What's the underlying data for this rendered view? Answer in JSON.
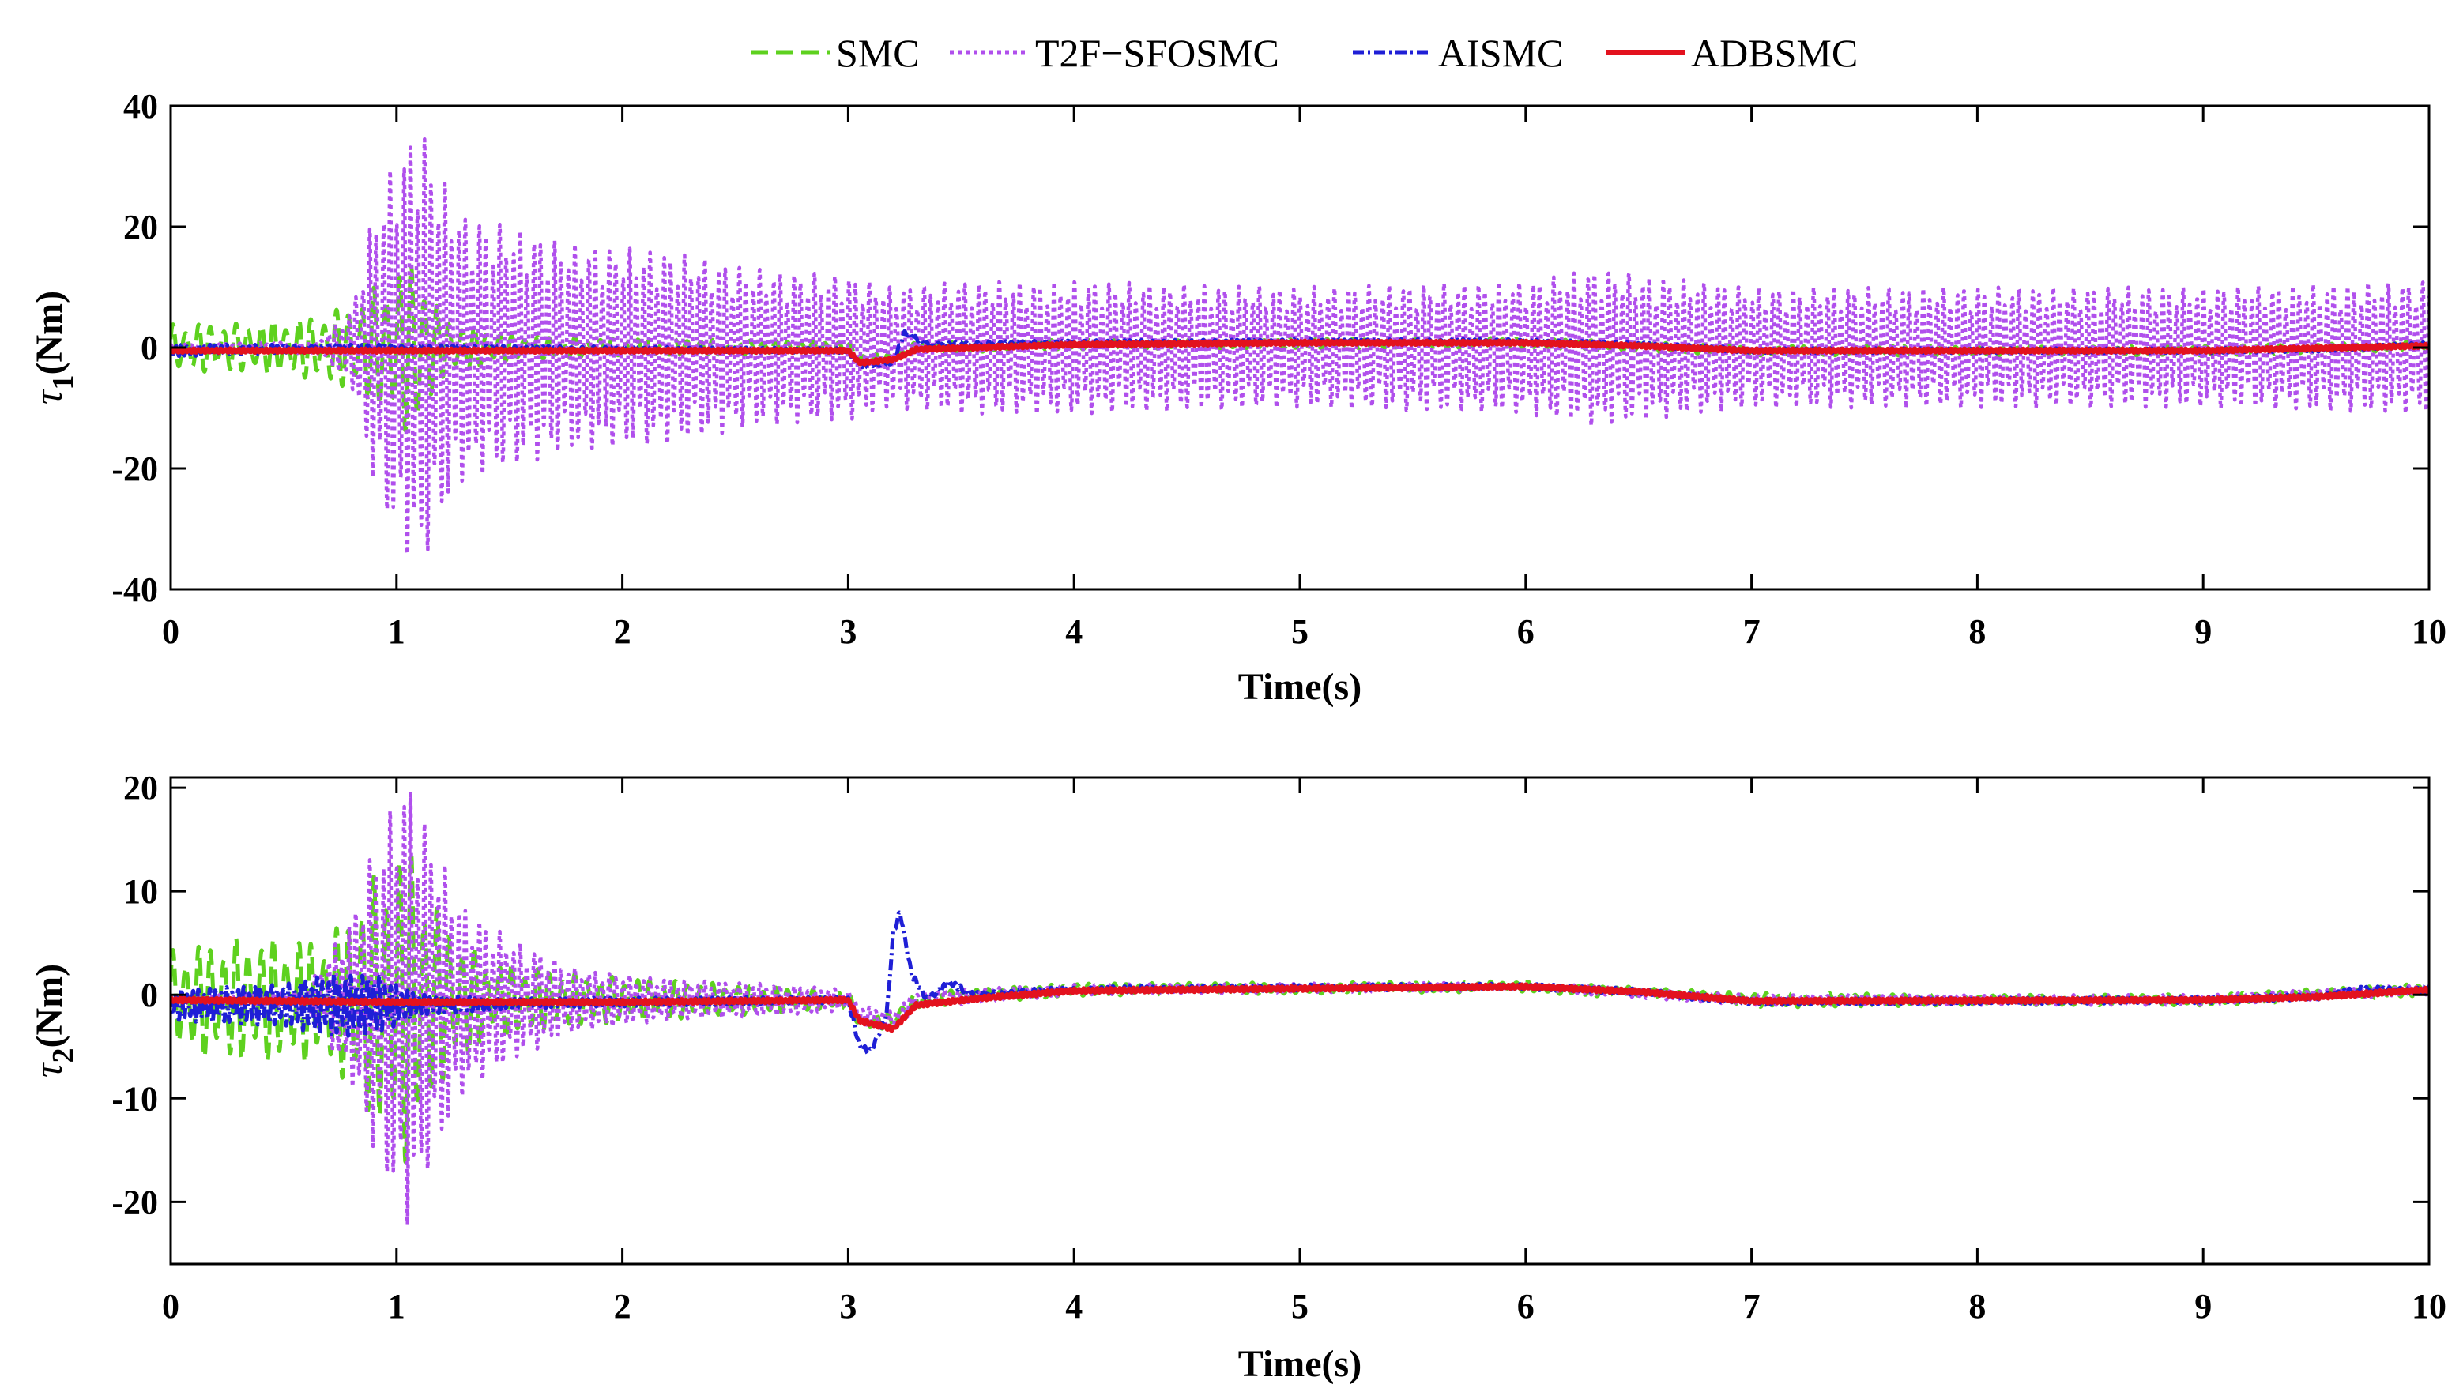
{
  "chart_data": [
    {
      "type": "line",
      "panel": "top",
      "ylabel_symbol": "τ",
      "ylabel_sub": "1",
      "ylabel_unit": "(Nm)",
      "xlabel": "Time(s)",
      "xlim": [
        0,
        10
      ],
      "ylim": [
        -40,
        40
      ],
      "xticks": [
        0,
        1,
        2,
        3,
        4,
        5,
        6,
        7,
        8,
        9,
        10
      ],
      "yticks": [
        -40,
        -20,
        0,
        20,
        40
      ],
      "series": [
        {
          "name": "SMC",
          "color": "#5ed11f",
          "envelope": [
            [
              0,
              4
            ],
            [
              0.3,
              4
            ],
            [
              0.6,
              5
            ],
            [
              0.8,
              7
            ],
            [
              1.0,
              13
            ],
            [
              1.1,
              15
            ],
            [
              1.2,
              5
            ],
            [
              1.5,
              2
            ],
            [
              2,
              1.5
            ],
            [
              3,
              1
            ],
            [
              4,
              0.8
            ],
            [
              6,
              0.8
            ],
            [
              8,
              0.8
            ],
            [
              10,
              0.8
            ]
          ],
          "baseline": [
            [
              0,
              0
            ],
            [
              3,
              0
            ],
            [
              3.05,
              -2
            ],
            [
              3.2,
              -2
            ],
            [
              3.3,
              0
            ],
            [
              4,
              0.5
            ],
            [
              6,
              0.8
            ],
            [
              7,
              -0.5
            ],
            [
              9,
              -0.5
            ],
            [
              10,
              0.3
            ]
          ]
        },
        {
          "name": "T2F−SFOSMC",
          "color": "#b04fec",
          "envelope": [
            [
              0,
              0.5
            ],
            [
              0.65,
              1
            ],
            [
              0.8,
              6
            ],
            [
              0.9,
              23
            ],
            [
              0.95,
              28
            ],
            [
              1.1,
              38
            ],
            [
              1.2,
              28
            ],
            [
              1.3,
              22
            ],
            [
              1.5,
              20
            ],
            [
              1.8,
              17
            ],
            [
              2.2,
              16
            ],
            [
              2.6,
              13
            ],
            [
              3.0,
              12
            ],
            [
              3.2,
              10
            ],
            [
              3.5,
              11
            ],
            [
              4,
              11
            ],
            [
              5,
              10
            ],
            [
              6,
              11
            ],
            [
              6.3,
              13
            ],
            [
              7,
              10
            ],
            [
              8,
              10
            ],
            [
              9,
              10
            ],
            [
              10,
              11
            ]
          ],
          "baseline": [
            [
              0,
              0
            ],
            [
              10,
              0
            ]
          ]
        },
        {
          "name": "AISMC",
          "color": "#1f1fd6",
          "envelope": [
            [
              0,
              1
            ],
            [
              0.8,
              0.5
            ],
            [
              3,
              0.4
            ],
            [
              10,
              0.4
            ]
          ],
          "baseline": [
            [
              0,
              -0.5
            ],
            [
              0.8,
              0
            ],
            [
              3.0,
              -0.5
            ],
            [
              3.05,
              -3
            ],
            [
              3.2,
              -2.5
            ],
            [
              3.25,
              2.5
            ],
            [
              3.35,
              0.5
            ],
            [
              4,
              0.8
            ],
            [
              5,
              1
            ],
            [
              6,
              1
            ],
            [
              6.5,
              0.5
            ],
            [
              7,
              -0.5
            ],
            [
              9,
              -0.5
            ],
            [
              9.5,
              -0.3
            ],
            [
              10,
              0.5
            ]
          ]
        },
        {
          "name": "ADBSMC",
          "color": "#e3121e",
          "envelope": [
            [
              0,
              0.3
            ],
            [
              10,
              0.3
            ]
          ],
          "baseline": [
            [
              0,
              -0.5
            ],
            [
              2,
              -0.5
            ],
            [
              3.0,
              -0.5
            ],
            [
              3.05,
              -2.5
            ],
            [
              3.2,
              -2
            ],
            [
              3.3,
              -0.3
            ],
            [
              4,
              0.5
            ],
            [
              5,
              0.8
            ],
            [
              6,
              0.8
            ],
            [
              6.5,
              0.3
            ],
            [
              7,
              -0.5
            ],
            [
              9,
              -0.5
            ],
            [
              10,
              0.3
            ]
          ]
        }
      ]
    },
    {
      "type": "line",
      "panel": "bottom",
      "ylabel_symbol": "τ",
      "ylabel_sub": "2",
      "ylabel_unit": "(Nm)",
      "xlabel": "Time(s)",
      "xlim": [
        0,
        10
      ],
      "ylim": [
        -26,
        21
      ],
      "xticks": [
        0,
        1,
        2,
        3,
        4,
        5,
        6,
        7,
        8,
        9,
        10
      ],
      "yticks": [
        -20,
        -10,
        0,
        10,
        20
      ],
      "series": [
        {
          "name": "SMC",
          "color": "#5ed11f",
          "envelope": [
            [
              0,
              5
            ],
            [
              0.3,
              6
            ],
            [
              0.5,
              6
            ],
            [
              0.7,
              6
            ],
            [
              0.9,
              12
            ],
            [
              1.05,
              16
            ],
            [
              1.2,
              8
            ],
            [
              1.4,
              4
            ],
            [
              1.8,
              2.5
            ],
            [
              2.5,
              1.5
            ],
            [
              3,
              0.8
            ],
            [
              4,
              0.6
            ],
            [
              6,
              0.5
            ],
            [
              7.2,
              0.7
            ],
            [
              8,
              0.5
            ],
            [
              10,
              0.6
            ]
          ],
          "baseline": [
            [
              0,
              -0.5
            ],
            [
              3,
              -0.5
            ],
            [
              3.05,
              -2.5
            ],
            [
              3.2,
              -2.5
            ],
            [
              3.3,
              -0.5
            ],
            [
              4,
              0.5
            ],
            [
              6,
              0.8
            ],
            [
              7,
              -0.5
            ],
            [
              9,
              -0.5
            ],
            [
              10,
              0.5
            ]
          ]
        },
        {
          "name": "T2F−SFOSMC",
          "color": "#b04fec",
          "envelope": [
            [
              0,
              0.3
            ],
            [
              0.6,
              1
            ],
            [
              0.8,
              8
            ],
            [
              0.9,
              15
            ],
            [
              1.05,
              22
            ],
            [
              1.15,
              16
            ],
            [
              1.3,
              9
            ],
            [
              1.5,
              6
            ],
            [
              1.8,
              3
            ],
            [
              2.2,
              2
            ],
            [
              2.7,
              1.5
            ],
            [
              3,
              1
            ],
            [
              4,
              0.5
            ],
            [
              6,
              0.4
            ],
            [
              7,
              0.5
            ],
            [
              8,
              0.5
            ],
            [
              10,
              0.5
            ]
          ],
          "baseline": [
            [
              0,
              -0.5
            ],
            [
              3,
              -0.5
            ],
            [
              3.05,
              -2
            ],
            [
              3.2,
              -2.5
            ],
            [
              3.3,
              -0.5
            ],
            [
              4,
              0.5
            ],
            [
              6,
              0.8
            ],
            [
              7,
              -0.5
            ],
            [
              9,
              -0.5
            ],
            [
              10,
              0.5
            ]
          ]
        },
        {
          "name": "AISMC",
          "color": "#1f1fd6",
          "envelope": [
            [
              0,
              1.5
            ],
            [
              0.5,
              2
            ],
            [
              0.7,
              3
            ],
            [
              0.9,
              3
            ],
            [
              1.1,
              1
            ],
            [
              1.5,
              0.5
            ],
            [
              3,
              0.3
            ],
            [
              10,
              0.3
            ]
          ],
          "baseline": [
            [
              0,
              -1
            ],
            [
              1,
              -1
            ],
            [
              2,
              -0.7
            ],
            [
              3,
              -0.5
            ],
            [
              3.05,
              -5
            ],
            [
              3.1,
              -5.5
            ],
            [
              3.17,
              -2
            ],
            [
              3.2,
              6
            ],
            [
              3.23,
              8
            ],
            [
              3.28,
              2
            ],
            [
              3.35,
              -0.5
            ],
            [
              3.45,
              1.2
            ],
            [
              3.55,
              0
            ],
            [
              4,
              0.5
            ],
            [
              5,
              0.7
            ],
            [
              6,
              0.8
            ],
            [
              6.5,
              0.3
            ],
            [
              7,
              -0.7
            ],
            [
              9,
              -0.5
            ],
            [
              9.5,
              -0.2
            ],
            [
              9.7,
              0.5
            ],
            [
              10,
              0.5
            ]
          ]
        },
        {
          "name": "ADBSMC",
          "color": "#e3121e",
          "envelope": [
            [
              0,
              0.2
            ],
            [
              10,
              0.2
            ]
          ],
          "baseline": [
            [
              0,
              -0.5
            ],
            [
              1,
              -0.7
            ],
            [
              2,
              -0.7
            ],
            [
              3,
              -0.5
            ],
            [
              3.05,
              -2.5
            ],
            [
              3.2,
              -3.3
            ],
            [
              3.3,
              -1
            ],
            [
              3.6,
              -0.3
            ],
            [
              4,
              0.4
            ],
            [
              5,
              0.6
            ],
            [
              6,
              0.8
            ],
            [
              6.5,
              0.3
            ],
            [
              7,
              -0.6
            ],
            [
              9,
              -0.5
            ],
            [
              9.5,
              -0.2
            ],
            [
              10,
              0.5
            ]
          ]
        }
      ]
    }
  ]
}
